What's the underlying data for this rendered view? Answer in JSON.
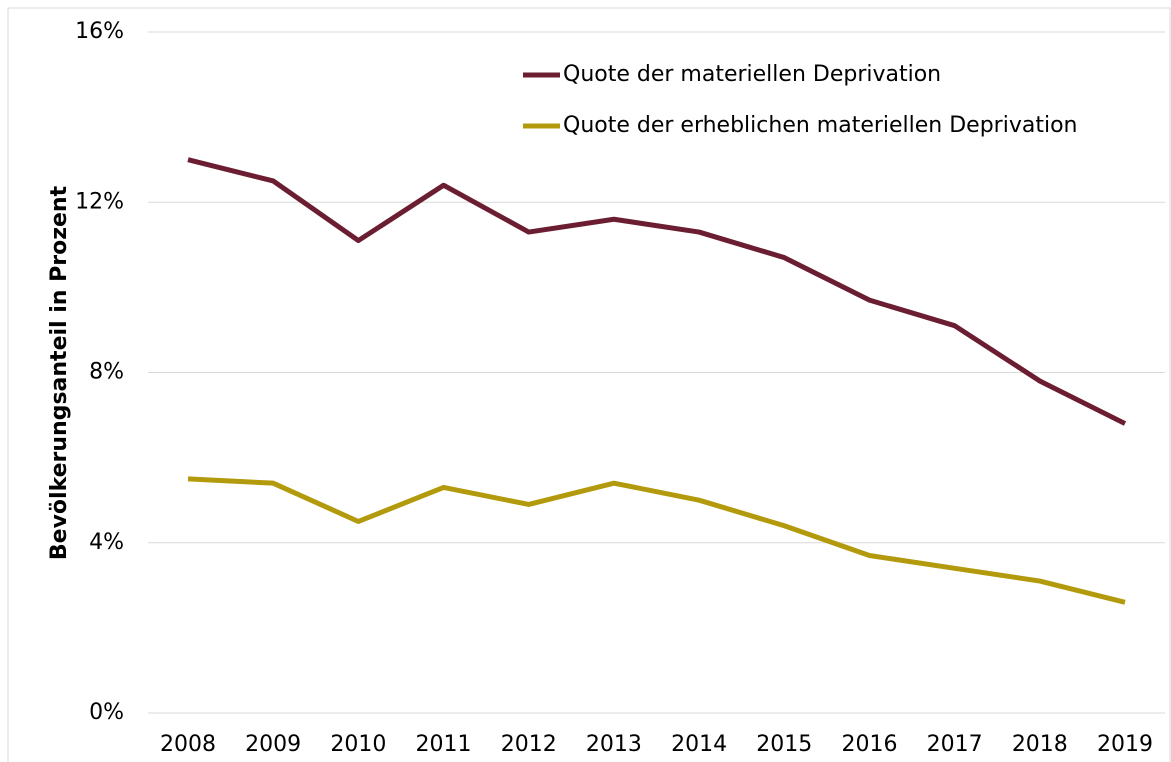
{
  "chart_data": {
    "type": "line",
    "y_label": "Bevölkerungsanteil in Prozent",
    "categories": [
      "2008",
      "2009",
      "2010",
      "2011",
      "2012",
      "2013",
      "2014",
      "2015",
      "2016",
      "2017",
      "2018",
      "2019"
    ],
    "series": [
      {
        "name": "Quote der materiellen Deprivation",
        "color": "#6b1e32",
        "values": [
          13.0,
          12.5,
          11.1,
          12.4,
          11.3,
          11.6,
          11.3,
          10.7,
          9.7,
          9.1,
          7.8,
          6.8
        ]
      },
      {
        "name": "Quote der erheblichen materiellen Deprivation",
        "color": "#b39a0c",
        "values": [
          5.5,
          5.4,
          4.5,
          5.3,
          4.9,
          5.4,
          5.0,
          4.4,
          3.7,
          3.4,
          3.1,
          2.6
        ]
      }
    ],
    "ylim": [
      0,
      16
    ],
    "yticks": [
      {
        "value": 0,
        "label": "0%"
      },
      {
        "value": 4,
        "label": "4%"
      },
      {
        "value": 8,
        "label": "8%"
      },
      {
        "value": 12,
        "label": "12%"
      },
      {
        "value": 16,
        "label": "16%"
      }
    ],
    "grid": true,
    "legend": "upper right"
  }
}
